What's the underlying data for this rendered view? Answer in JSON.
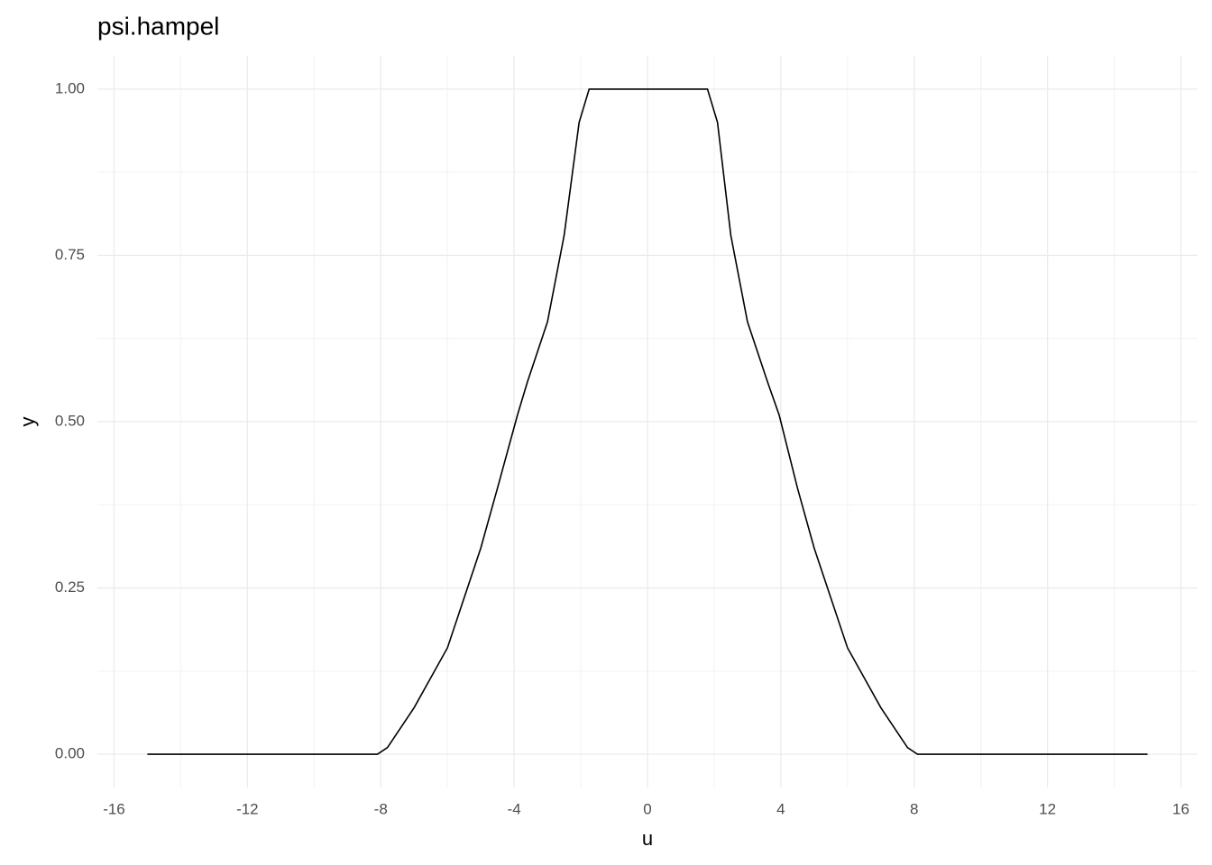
{
  "chart_data": {
    "type": "line",
    "title": "psi.hampel",
    "x_label": "u",
    "y_label": "y",
    "x": [
      -15,
      -8.1,
      -7.8,
      -7,
      -6,
      -5,
      -4.5,
      -3.9,
      -3.6,
      -3,
      -2.5,
      -2.05,
      -1.75,
      1.8,
      2.1,
      2.5,
      3,
      3.6,
      3.95,
      4.5,
      5,
      6,
      7,
      7.8,
      8.1,
      15
    ],
    "series": [
      {
        "color": "#000000",
        "values": [
          0,
          0,
          0.01,
          0.07,
          0.16,
          0.31,
          0.4,
          0.51,
          0.56,
          0.65,
          0.78,
          0.95,
          1,
          1,
          0.95,
          0.78,
          0.65,
          0.56,
          0.51,
          0.4,
          0.31,
          0.16,
          0.07,
          0.01,
          0,
          0
        ]
      }
    ],
    "xlim": [
      -16.5,
      16.5
    ],
    "ylim": [
      -0.05,
      1.05
    ],
    "xticks": [
      -16,
      -12,
      -8,
      -4,
      0,
      4,
      8,
      12,
      16
    ],
    "yticks": [
      {
        "value": 0,
        "label": "0.00"
      },
      {
        "value": 0.25,
        "label": "0.25"
      },
      {
        "value": 0.5,
        "label": "0.50"
      },
      {
        "value": 0.75,
        "label": "0.75"
      },
      {
        "value": 1,
        "label": "1.00"
      }
    ],
    "grid": true,
    "minor_grid": true
  }
}
